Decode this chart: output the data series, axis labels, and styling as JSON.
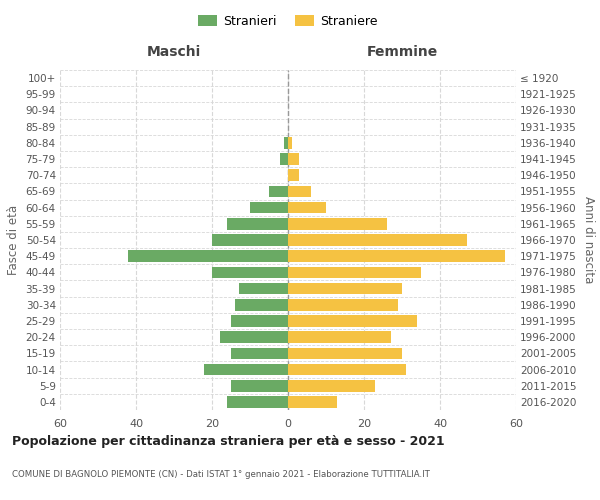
{
  "age_groups": [
    "0-4",
    "5-9",
    "10-14",
    "15-19",
    "20-24",
    "25-29",
    "30-34",
    "35-39",
    "40-44",
    "45-49",
    "50-54",
    "55-59",
    "60-64",
    "65-69",
    "70-74",
    "75-79",
    "80-84",
    "85-89",
    "90-94",
    "95-99",
    "100+"
  ],
  "birth_years": [
    "2016-2020",
    "2011-2015",
    "2006-2010",
    "2001-2005",
    "1996-2000",
    "1991-1995",
    "1986-1990",
    "1981-1985",
    "1976-1980",
    "1971-1975",
    "1966-1970",
    "1961-1965",
    "1956-1960",
    "1951-1955",
    "1946-1950",
    "1941-1945",
    "1936-1940",
    "1931-1935",
    "1926-1930",
    "1921-1925",
    "≤ 1920"
  ],
  "maschi": [
    16,
    15,
    22,
    15,
    18,
    15,
    14,
    13,
    20,
    42,
    20,
    16,
    10,
    5,
    0,
    2,
    1,
    0,
    0,
    0,
    0
  ],
  "femmine": [
    13,
    23,
    31,
    30,
    27,
    34,
    29,
    30,
    35,
    57,
    47,
    26,
    10,
    6,
    3,
    3,
    1,
    0,
    0,
    0,
    0
  ],
  "male_color": "#6aaa64",
  "female_color": "#f5c242",
  "title": "Popolazione per cittadinanza straniera per età e sesso - 2021",
  "subtitle": "COMUNE DI BAGNOLO PIEMONTE (CN) - Dati ISTAT 1° gennaio 2021 - Elaborazione TUTTITALIA.IT",
  "ylabel_left": "Fasce di età",
  "ylabel_right": "Anni di nascita",
  "header_maschi": "Maschi",
  "header_femmine": "Femmine",
  "xlim": 60,
  "legend_maschi": "Stranieri",
  "legend_femmine": "Straniere",
  "bg_color": "#ffffff",
  "grid_color": "#d8d8d8"
}
